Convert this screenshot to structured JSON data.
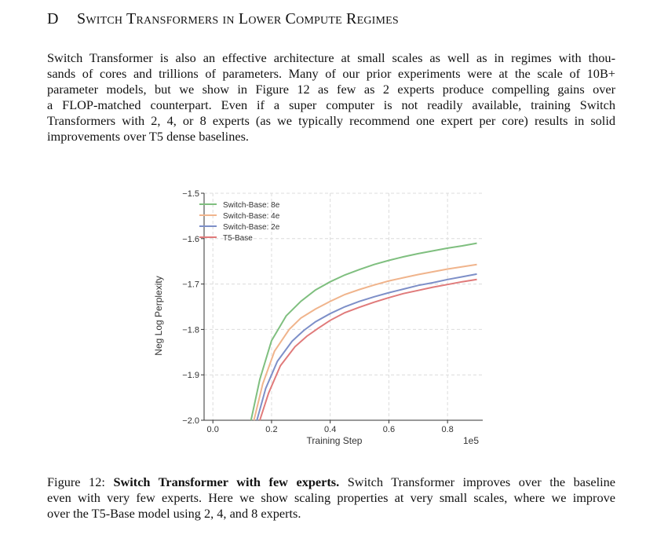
{
  "section": {
    "letter": "D",
    "title": "Switch Transformers in Lower Compute Regimes"
  },
  "paragraph": {
    "lines": [
      "Switch Transformer is also an effective architecture at small scales as well as in regimes with thou-",
      "sands of cores and trillions of parameters. Many of our prior experiments were at the scale of 10B+",
      "parameter models, but we show in Figure 12 as few as 2 experts produce compelling gains over",
      "a FLOP-matched counterpart.  Even if a super computer is not readily available, training Switch",
      "Transformers with 2, 4, or 8 experts (as we typically recommend one expert per core) results in solid",
      "improvements over T5 dense baselines."
    ]
  },
  "chart_data": {
    "type": "line",
    "xlabel": "Training Step",
    "ylabel": "Neg Log Perplexity",
    "x_multiplier_label": "1e5",
    "xlim": [
      -0.03,
      0.92
    ],
    "ylim": [
      -2.0,
      -1.5
    ],
    "xticks": [
      "0.0",
      "0.2",
      "0.4",
      "0.6",
      "0.8"
    ],
    "yticks": [
      "−1.5",
      "−1.6",
      "−1.7",
      "−1.8",
      "−1.9",
      "−2.0"
    ],
    "grid": true,
    "legend_position": "top-left",
    "series": [
      {
        "name": "Switch-Base: 8e",
        "color": "#7fbf7f",
        "x": [
          0.13,
          0.16,
          0.2,
          0.25,
          0.3,
          0.35,
          0.4,
          0.45,
          0.5,
          0.55,
          0.6,
          0.65,
          0.7,
          0.75,
          0.8,
          0.85,
          0.9
        ],
        "y": [
          -2.0,
          -1.91,
          -1.825,
          -1.77,
          -1.738,
          -1.713,
          -1.695,
          -1.68,
          -1.668,
          -1.657,
          -1.648,
          -1.64,
          -1.633,
          -1.627,
          -1.621,
          -1.616,
          -1.61
        ]
      },
      {
        "name": "Switch-Base: 4e",
        "color": "#f0b48c",
        "x": [
          0.14,
          0.17,
          0.21,
          0.26,
          0.3,
          0.35,
          0.4,
          0.45,
          0.5,
          0.55,
          0.6,
          0.65,
          0.7,
          0.75,
          0.8,
          0.85,
          0.9
        ],
        "y": [
          -2.0,
          -1.92,
          -1.848,
          -1.8,
          -1.775,
          -1.755,
          -1.738,
          -1.723,
          -1.712,
          -1.702,
          -1.693,
          -1.686,
          -1.679,
          -1.673,
          -1.667,
          -1.662,
          -1.657
        ]
      },
      {
        "name": "Switch-Base: 2e",
        "color": "#7d8fc8",
        "x": [
          0.15,
          0.18,
          0.22,
          0.27,
          0.31,
          0.35,
          0.4,
          0.45,
          0.5,
          0.55,
          0.6,
          0.65,
          0.7,
          0.75,
          0.8,
          0.85,
          0.9
        ],
        "y": [
          -2.0,
          -1.93,
          -1.87,
          -1.826,
          -1.802,
          -1.783,
          -1.765,
          -1.75,
          -1.738,
          -1.728,
          -1.719,
          -1.711,
          -1.703,
          -1.697,
          -1.69,
          -1.684,
          -1.678
        ]
      },
      {
        "name": "T5-Base",
        "color": "#e07a7a",
        "x": [
          0.16,
          0.19,
          0.23,
          0.28,
          0.32,
          0.36,
          0.4,
          0.45,
          0.5,
          0.55,
          0.6,
          0.65,
          0.7,
          0.75,
          0.8,
          0.85,
          0.9
        ],
        "y": [
          -2.0,
          -1.94,
          -1.88,
          -1.838,
          -1.815,
          -1.797,
          -1.78,
          -1.763,
          -1.751,
          -1.74,
          -1.73,
          -1.721,
          -1.714,
          -1.707,
          -1.701,
          -1.695,
          -1.69
        ]
      }
    ]
  },
  "caption": {
    "label": "Figure 12:",
    "bold_title": "Switch Transformer with few experts.",
    "line1_rest": "Switch Transformer improves over the baseline",
    "line2": "even with very few experts. Here we show scaling properties at very small scales, where we improve",
    "line3": "over the T5-Base model using 2, 4, and 8 experts."
  }
}
